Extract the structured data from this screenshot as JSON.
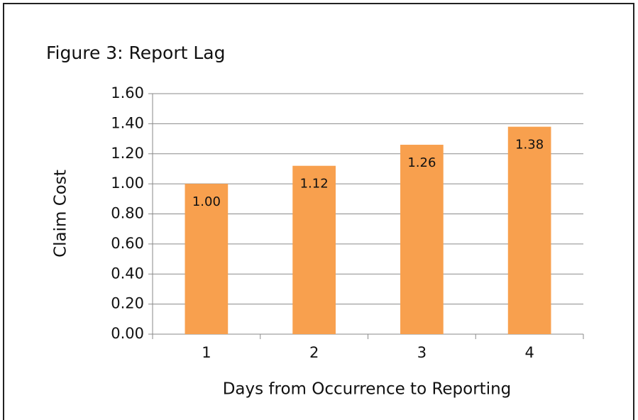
{
  "chart_data": {
    "type": "bar",
    "title": "Figure 3: Report Lag",
    "x_label": "Days from Occurrence to Reporting",
    "y_label": "Claim Cost",
    "categories": [
      "1",
      "2",
      "3",
      "4"
    ],
    "values": [
      1,
      1.12,
      1.26,
      1.38
    ],
    "value_labels": [
      "1.00",
      "1.12",
      "1.26",
      "1.38"
    ],
    "color": "#f8a04e",
    "ylim": [
      0,
      1.6
    ],
    "yticks": [
      {
        "value": 0,
        "label": "0.00"
      },
      {
        "value": 0.2,
        "label": "0.20"
      },
      {
        "value": 0.4,
        "label": "0.40"
      },
      {
        "value": 0.6,
        "label": "0.60"
      },
      {
        "value": 0.8,
        "label": "0.80"
      },
      {
        "value": 1,
        "label": "1.00"
      },
      {
        "value": 1.2,
        "label": "1.20"
      },
      {
        "value": 1.4,
        "label": "1.40"
      },
      {
        "value": 1.6,
        "label": "1.60"
      }
    ],
    "grid": true
  }
}
